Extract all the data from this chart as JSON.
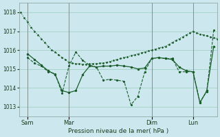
{
  "title": "Pression niveau de la mer( hPa )",
  "ylim": [
    1012.5,
    1018.5
  ],
  "yticks": [
    1013,
    1014,
    1015,
    1016,
    1017,
    1018
  ],
  "bg_color": "#cce8ee",
  "grid_color": "#99ccbb",
  "line_color": "#1a5c2a",
  "xtick_labels": [
    "Sam",
    "Mar",
    "Dim",
    "Lun"
  ],
  "xtick_positions": [
    8,
    56,
    152,
    200
  ],
  "xlim": [
    -2,
    228
  ],
  "series1_x": [
    0,
    4,
    8,
    12,
    16,
    20,
    24,
    28,
    32,
    36,
    40,
    44,
    48,
    52,
    56,
    60,
    64,
    68,
    72,
    76,
    80,
    84,
    88,
    92,
    96,
    100,
    104,
    108,
    112,
    116,
    120,
    124,
    128,
    132,
    136,
    140,
    144,
    148,
    152,
    156,
    160,
    164,
    168,
    172,
    176,
    180,
    184,
    188,
    192,
    196,
    200,
    204,
    208,
    212,
    216,
    220,
    224,
    228
  ],
  "series1_y": [
    1018.0,
    1017.7,
    1017.5,
    1017.2,
    1017.0,
    1016.8,
    1016.6,
    1016.4,
    1016.2,
    1016.0,
    1015.9,
    1015.75,
    1015.6,
    1015.5,
    1015.35,
    1015.3,
    1015.28,
    1015.26,
    1015.25,
    1015.25,
    1015.26,
    1015.27,
    1015.28,
    1015.3,
    1015.32,
    1015.35,
    1015.4,
    1015.45,
    1015.5,
    1015.55,
    1015.6,
    1015.65,
    1015.7,
    1015.75,
    1015.8,
    1015.85,
    1015.9,
    1015.95,
    1016.0,
    1016.05,
    1016.1,
    1016.15,
    1016.2,
    1016.3,
    1016.4,
    1016.5,
    1016.6,
    1016.7,
    1016.8,
    1016.9,
    1017.0,
    1016.9,
    1016.85,
    1016.8,
    1016.75,
    1016.7,
    1016.65,
    1016.6
  ],
  "series2_x": [
    8,
    16,
    24,
    32,
    40,
    48,
    56,
    64,
    72,
    80,
    88,
    96,
    104,
    112,
    120,
    128,
    136,
    144,
    152,
    160,
    168,
    176,
    184,
    192,
    200,
    208,
    216,
    224
  ],
  "series2_y": [
    1015.8,
    1015.5,
    1015.2,
    1014.9,
    1014.7,
    1013.85,
    1013.75,
    1013.85,
    1014.7,
    1015.15,
    1015.1,
    1015.15,
    1015.15,
    1015.2,
    1015.15,
    1015.1,
    1015.0,
    1015.05,
    1015.55,
    1015.6,
    1015.55,
    1015.5,
    1015.1,
    1014.9,
    1014.85,
    1013.2,
    1013.85,
    1016.2
  ],
  "series3_x": [
    8,
    16,
    24,
    32,
    40,
    48,
    56,
    64,
    72,
    80,
    88,
    96,
    104,
    112,
    120,
    128,
    136,
    144,
    152,
    160,
    168,
    176,
    184,
    192,
    200,
    208,
    216,
    224
  ],
  "series3_y": [
    1015.6,
    1015.3,
    1015.15,
    1014.85,
    1014.75,
    1013.7,
    1015.15,
    1015.9,
    1015.45,
    1015.2,
    1015.1,
    1014.4,
    1014.45,
    1014.4,
    1014.35,
    1013.1,
    1013.55,
    1014.85,
    1015.55,
    1015.6,
    1015.55,
    1015.55,
    1014.85,
    1014.85,
    1014.85,
    1013.25,
    1013.8,
    1017.05
  ]
}
